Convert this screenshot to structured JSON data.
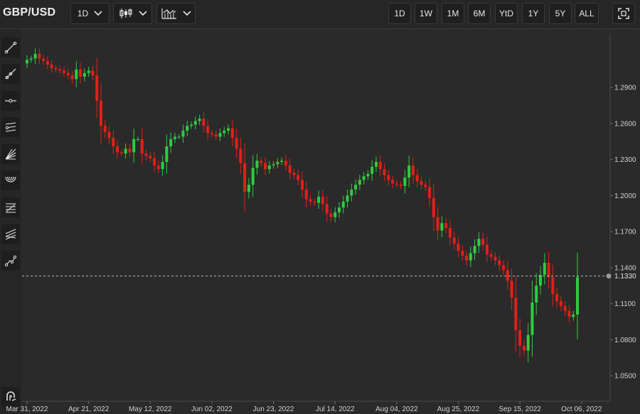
{
  "toolbar": {
    "symbol": "GBP/USD",
    "interval_label": "1D",
    "chart_type_icon": "candlestick-icon",
    "indicators_icon": "indicators-icon",
    "ranges": [
      "1D",
      "1W",
      "1M",
      "6M",
      "YtD",
      "1Y",
      "5Y",
      "ALL"
    ],
    "fullscreen_icon": "fullscreen-icon"
  },
  "sidebar": {
    "tools": [
      {
        "icon": "trend-line-icon"
      },
      {
        "icon": "ray-icon"
      },
      {
        "icon": "horizontal-line-icon"
      },
      {
        "icon": "parallel-channel-icon"
      },
      {
        "icon": "gann-fan-icon"
      },
      {
        "icon": "fibonacci-arcs-icon"
      },
      {
        "icon": "fibonacci-retracement-icon"
      },
      {
        "icon": "pitchfork-icon"
      },
      {
        "icon": "path-icon"
      }
    ],
    "bottom_tool": {
      "icon": "magnet-icon"
    }
  },
  "chart_data": {
    "type": "candlestick",
    "title": "GBP/USD",
    "up_color": "#2ecc40",
    "down_color": "#e0201a",
    "current_price": "1.1330",
    "current_price_value": 1.133,
    "ylim": [
      1.03,
      1.335
    ],
    "y_ticks": [
      "1.2900",
      "1.2600",
      "1.2300",
      "1.2000",
      "1.1700",
      "1.1400",
      "1.1100",
      "1.0800",
      "1.0500"
    ],
    "y_tick_values": [
      1.29,
      1.26,
      1.23,
      1.2,
      1.17,
      1.14,
      1.11,
      1.08,
      1.05
    ],
    "x_ticks": [
      "Mar 31, 2022",
      "Apr 21, 2022",
      "May 12, 2022",
      "Jun 02, 2022",
      "Jun 23, 2022",
      "Jul 14, 2022",
      "Aug 04, 2022",
      "Aug 25, 2022",
      "Sep 15, 2022",
      "Oct 06, 2022"
    ],
    "x_tick_index": [
      0,
      15,
      30,
      45,
      60,
      75,
      90,
      105,
      120,
      135
    ],
    "grid": false,
    "closes": [
      1.313,
      1.314,
      1.318,
      1.314,
      1.312,
      1.309,
      1.306,
      1.305,
      1.304,
      1.302,
      1.3,
      1.297,
      1.305,
      1.299,
      1.302,
      1.304,
      1.3,
      1.279,
      1.258,
      1.253,
      1.248,
      1.241,
      1.236,
      1.235,
      1.239,
      1.236,
      1.247,
      1.247,
      1.235,
      1.233,
      1.231,
      1.225,
      1.222,
      1.228,
      1.241,
      1.247,
      1.249,
      1.249,
      1.254,
      1.258,
      1.259,
      1.262,
      1.264,
      1.258,
      1.252,
      1.251,
      1.249,
      1.252,
      1.254,
      1.256,
      1.248,
      1.239,
      1.227,
      1.203,
      1.209,
      1.223,
      1.229,
      1.227,
      1.222,
      1.225,
      1.226,
      1.228,
      1.229,
      1.225,
      1.219,
      1.217,
      1.213,
      1.205,
      1.197,
      1.195,
      1.194,
      1.199,
      1.193,
      1.185,
      1.182,
      1.186,
      1.19,
      1.195,
      1.2,
      1.205,
      1.209,
      1.213,
      1.216,
      1.218,
      1.224,
      1.228,
      1.222,
      1.217,
      1.213,
      1.21,
      1.209,
      1.208,
      1.215,
      1.225,
      1.217,
      1.212,
      1.209,
      1.207,
      1.198,
      1.182,
      1.171,
      1.177,
      1.173,
      1.165,
      1.16,
      1.154,
      1.15,
      1.146,
      1.152,
      1.158,
      1.164,
      1.159,
      1.151,
      1.149,
      1.146,
      1.142,
      1.138,
      1.129,
      1.115,
      1.088,
      1.075,
      1.071,
      1.084,
      1.111,
      1.125,
      1.134,
      1.144,
      1.132,
      1.118,
      1.112,
      1.108,
      1.104,
      1.099,
      1.101,
      1.132
    ],
    "y_grid_lines": false
  }
}
